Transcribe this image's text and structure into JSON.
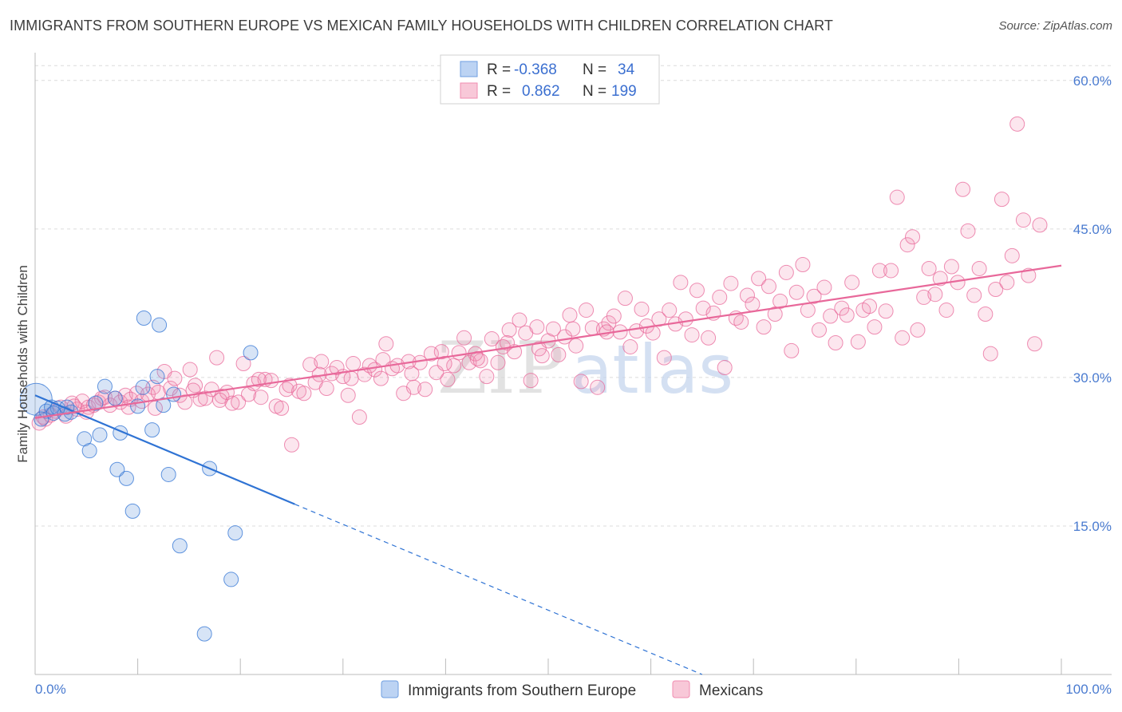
{
  "title": "IMMIGRANTS FROM SOUTHERN EUROPE VS MEXICAN FAMILY HOUSEHOLDS WITH CHILDREN CORRELATION CHART",
  "source": "Source: ZipAtlas.com",
  "watermark": {
    "zip": "ZIP",
    "atlas": "atlas"
  },
  "colors": {
    "blue": "#6f9fe0",
    "blue_line": "#2f73d4",
    "pink": "#f08db0",
    "pink_line": "#e8689a",
    "tick": "#4a7bd0"
  },
  "legend": {
    "rows": [
      {
        "r_label": "R =",
        "r_value": "-0.368",
        "n_label": "N =",
        "n_value": "34"
      },
      {
        "r_label": "R =",
        "r_value": "0.862",
        "n_label": "N =",
        "n_value": "199"
      }
    ]
  },
  "bottom_legend": [
    "Immigrants from Southern Europe",
    "Mexicans"
  ],
  "chart_data": {
    "type": "scatter",
    "title": "IMMIGRANTS FROM SOUTHERN EUROPE VS MEXICAN FAMILY HOUSEHOLDS WITH CHILDREN CORRELATION CHART",
    "xlabel": "",
    "ylabel": "Family Households with Children",
    "xlim": [
      0,
      100
    ],
    "ylim": [
      0,
      62
    ],
    "x_tick_labels": [
      "0.0%",
      "100.0%"
    ],
    "y_ticks": [
      15,
      30,
      45,
      60
    ],
    "y_tick_labels": [
      "15.0%",
      "30.0%",
      "45.0%",
      "60.0%"
    ],
    "grid": "horizontal dashed",
    "legend_placement": "top-center",
    "series": [
      {
        "name": "Immigrants from Southern Europe",
        "color": "#6f9fe0",
        "r": -0.368,
        "n": 34,
        "trend": {
          "x": [
            0,
            25.3
          ],
          "y": [
            28.2,
            17.2
          ],
          "dashed_to": [
            65,
            0
          ]
        },
        "points": [
          [
            0.1,
            27.8
          ],
          [
            1.1,
            26.6
          ],
          [
            1.6,
            27.0
          ],
          [
            2.2,
            26.9
          ],
          [
            2.9,
            26.3
          ],
          [
            3.5,
            26.5
          ],
          [
            4.8,
            23.8
          ],
          [
            5.3,
            22.6
          ],
          [
            6.3,
            24.2
          ],
          [
            6.8,
            29.1
          ],
          [
            7.8,
            27.9
          ],
          [
            8.0,
            20.7
          ],
          [
            8.3,
            24.4
          ],
          [
            8.9,
            19.8
          ],
          [
            9.5,
            16.5
          ],
          [
            10.0,
            27.1
          ],
          [
            10.5,
            29.0
          ],
          [
            10.6,
            36.0
          ],
          [
            11.4,
            24.7
          ],
          [
            11.9,
            30.1
          ],
          [
            12.1,
            35.3
          ],
          [
            12.5,
            27.2
          ],
          [
            13.0,
            20.2
          ],
          [
            13.5,
            28.3
          ],
          [
            14.1,
            13.0
          ],
          [
            16.5,
            4.1
          ],
          [
            17.0,
            20.8
          ],
          [
            19.1,
            9.6
          ],
          [
            19.5,
            14.3
          ],
          [
            21.0,
            32.5
          ],
          [
            1.8,
            26.4
          ],
          [
            5.9,
            27.4
          ],
          [
            3.1,
            27.0
          ],
          [
            0.6,
            25.8
          ]
        ]
      },
      {
        "name": "Mexicans",
        "color": "#f08db0",
        "r": 0.862,
        "n": 199,
        "trend": {
          "x": [
            0,
            100
          ],
          "y": [
            25.9,
            41.3
          ]
        },
        "points": [
          [
            1.0,
            25.8
          ],
          [
            1.5,
            26.2
          ],
          [
            2.0,
            26.6
          ],
          [
            2.5,
            27.0
          ],
          [
            3.0,
            26.1
          ],
          [
            3.6,
            27.4
          ],
          [
            4.1,
            26.8
          ],
          [
            4.6,
            27.6
          ],
          [
            5.2,
            27.0
          ],
          [
            5.7,
            27.2
          ],
          [
            6.2,
            27.5
          ],
          [
            6.8,
            28.0
          ],
          [
            7.3,
            27.2
          ],
          [
            7.8,
            27.9
          ],
          [
            8.3,
            27.5
          ],
          [
            8.8,
            28.2
          ],
          [
            9.3,
            27.8
          ],
          [
            9.9,
            28.4
          ],
          [
            10.4,
            27.6
          ],
          [
            11.0,
            28.3
          ],
          [
            11.5,
            29.0
          ],
          [
            12.0,
            28.5
          ],
          [
            12.6,
            30.6
          ],
          [
            13.2,
            28.9
          ],
          [
            13.6,
            29.9
          ],
          [
            14.1,
            28.2
          ],
          [
            14.6,
            27.5
          ],
          [
            15.1,
            30.8
          ],
          [
            15.6,
            29.2
          ],
          [
            16.1,
            27.8
          ],
          [
            16.6,
            27.9
          ],
          [
            17.2,
            28.8
          ],
          [
            17.7,
            32.0
          ],
          [
            18.2,
            28.1
          ],
          [
            18.7,
            28.5
          ],
          [
            19.2,
            27.4
          ],
          [
            19.8,
            27.5
          ],
          [
            20.3,
            31.4
          ],
          [
            20.8,
            28.3
          ],
          [
            21.3,
            29.4
          ],
          [
            22.0,
            28.0
          ],
          [
            22.4,
            29.8
          ],
          [
            23.0,
            29.7
          ],
          [
            23.5,
            27.1
          ],
          [
            24.0,
            26.9
          ],
          [
            24.5,
            28.8
          ],
          [
            25.0,
            23.2
          ],
          [
            25.7,
            28.6
          ],
          [
            26.2,
            28.4
          ],
          [
            26.8,
            31.3
          ],
          [
            27.3,
            29.5
          ],
          [
            27.9,
            31.6
          ],
          [
            28.4,
            28.9
          ],
          [
            28.9,
            30.4
          ],
          [
            29.4,
            31.0
          ],
          [
            30.0,
            30.1
          ],
          [
            30.5,
            28.2
          ],
          [
            31.0,
            31.4
          ],
          [
            31.6,
            26.0
          ],
          [
            32.1,
            30.3
          ],
          [
            32.6,
            31.2
          ],
          [
            33.1,
            30.8
          ],
          [
            33.7,
            29.9
          ],
          [
            34.2,
            33.4
          ],
          [
            34.8,
            30.9
          ],
          [
            35.3,
            31.2
          ],
          [
            35.9,
            28.4
          ],
          [
            36.4,
            31.6
          ],
          [
            36.9,
            29.0
          ],
          [
            37.5,
            31.5
          ],
          [
            38.0,
            28.8
          ],
          [
            38.6,
            32.4
          ],
          [
            39.1,
            30.5
          ],
          [
            39.6,
            32.6
          ],
          [
            40.2,
            29.8
          ],
          [
            40.8,
            31.2
          ],
          [
            41.3,
            32.5
          ],
          [
            41.8,
            34.0
          ],
          [
            42.3,
            31.5
          ],
          [
            42.9,
            32.4
          ],
          [
            43.4,
            31.7
          ],
          [
            44.0,
            30.1
          ],
          [
            44.5,
            33.9
          ],
          [
            45.1,
            31.5
          ],
          [
            45.6,
            33.1
          ],
          [
            46.2,
            34.8
          ],
          [
            46.7,
            32.6
          ],
          [
            47.2,
            35.8
          ],
          [
            47.8,
            34.5
          ],
          [
            48.3,
            29.7
          ],
          [
            48.9,
            35.1
          ],
          [
            49.4,
            32.2
          ],
          [
            50.0,
            33.7
          ],
          [
            50.5,
            34.9
          ],
          [
            51.0,
            32.3
          ],
          [
            51.6,
            34.1
          ],
          [
            52.1,
            36.3
          ],
          [
            52.7,
            33.2
          ],
          [
            53.2,
            29.6
          ],
          [
            53.7,
            36.8
          ],
          [
            54.3,
            35.0
          ],
          [
            54.8,
            29.0
          ],
          [
            55.4,
            34.9
          ],
          [
            55.9,
            35.5
          ],
          [
            56.4,
            36.2
          ],
          [
            57.0,
            34.6
          ],
          [
            57.5,
            38.0
          ],
          [
            58.0,
            33.1
          ],
          [
            58.6,
            34.7
          ],
          [
            59.1,
            36.9
          ],
          [
            59.6,
            35.2
          ],
          [
            60.2,
            34.5
          ],
          [
            60.8,
            35.9
          ],
          [
            61.3,
            32.0
          ],
          [
            61.8,
            36.8
          ],
          [
            62.4,
            35.4
          ],
          [
            62.9,
            39.6
          ],
          [
            63.4,
            35.9
          ],
          [
            64.0,
            34.3
          ],
          [
            64.5,
            38.8
          ],
          [
            65.1,
            37.0
          ],
          [
            65.6,
            34.0
          ],
          [
            66.1,
            36.5
          ],
          [
            66.7,
            38.1
          ],
          [
            67.2,
            31.0
          ],
          [
            67.8,
            39.5
          ],
          [
            68.3,
            36.0
          ],
          [
            68.8,
            35.6
          ],
          [
            69.4,
            38.3
          ],
          [
            69.9,
            37.4
          ],
          [
            70.5,
            40.0
          ],
          [
            71.0,
            35.1
          ],
          [
            71.5,
            39.2
          ],
          [
            72.1,
            36.4
          ],
          [
            72.6,
            37.7
          ],
          [
            73.2,
            40.6
          ],
          [
            73.7,
            32.7
          ],
          [
            74.2,
            38.6
          ],
          [
            74.8,
            41.4
          ],
          [
            75.3,
            36.8
          ],
          [
            75.9,
            38.2
          ],
          [
            76.4,
            34.8
          ],
          [
            76.9,
            39.1
          ],
          [
            77.5,
            36.2
          ],
          [
            78.0,
            33.5
          ],
          [
            78.6,
            37.0
          ],
          [
            79.1,
            36.3
          ],
          [
            79.6,
            39.6
          ],
          [
            80.2,
            33.6
          ],
          [
            80.7,
            36.8
          ],
          [
            81.3,
            37.2
          ],
          [
            81.8,
            35.1
          ],
          [
            82.3,
            40.8
          ],
          [
            82.9,
            36.7
          ],
          [
            83.4,
            40.8
          ],
          [
            84.0,
            48.2
          ],
          [
            84.5,
            34.0
          ],
          [
            85.0,
            43.4
          ],
          [
            85.5,
            44.2
          ],
          [
            86.0,
            34.8
          ],
          [
            86.6,
            38.1
          ],
          [
            87.1,
            41.0
          ],
          [
            87.7,
            38.4
          ],
          [
            88.2,
            40.0
          ],
          [
            88.8,
            36.8
          ],
          [
            89.3,
            41.2
          ],
          [
            89.9,
            39.6
          ],
          [
            90.4,
            49.0
          ],
          [
            90.9,
            44.8
          ],
          [
            91.5,
            38.3
          ],
          [
            92.0,
            41.0
          ],
          [
            92.6,
            36.4
          ],
          [
            93.1,
            32.4
          ],
          [
            93.6,
            38.9
          ],
          [
            94.2,
            48.0
          ],
          [
            94.7,
            39.6
          ],
          [
            95.2,
            42.3
          ],
          [
            95.7,
            55.6
          ],
          [
            96.3,
            45.9
          ],
          [
            96.8,
            40.3
          ],
          [
            97.4,
            33.4
          ],
          [
            97.9,
            45.4
          ],
          [
            0.4,
            25.4
          ],
          [
            0.8,
            26.0
          ],
          [
            3.8,
            27.1
          ],
          [
            5.0,
            26.5
          ],
          [
            6.5,
            27.9
          ],
          [
            9.1,
            27.0
          ],
          [
            11.7,
            26.9
          ],
          [
            15.4,
            28.7
          ],
          [
            18.0,
            27.7
          ],
          [
            21.8,
            29.8
          ],
          [
            24.8,
            29.2
          ],
          [
            27.7,
            30.3
          ],
          [
            30.8,
            29.9
          ],
          [
            33.9,
            31.8
          ],
          [
            36.7,
            30.4
          ],
          [
            39.9,
            31.4
          ],
          [
            43.1,
            31.9
          ],
          [
            46.0,
            33.5
          ],
          [
            49.1,
            32.9
          ],
          [
            52.4,
            34.9
          ],
          [
            55.7,
            34.6
          ]
        ]
      }
    ]
  }
}
